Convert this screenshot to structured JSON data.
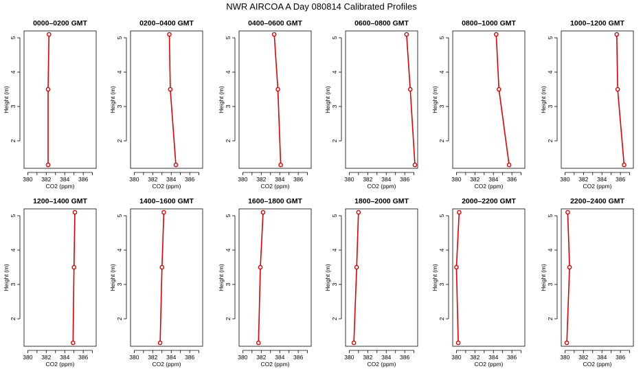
{
  "page": {
    "title": "NWR AIRCOA A  Day 080814  Calibrated Profiles"
  },
  "chart_data": {
    "type": "line",
    "xlabel": "CO2 (ppm)",
    "ylabel": "Height (m)",
    "xlim": [
      379.6,
      387.4
    ],
    "ylim": [
      1.2,
      5.2
    ],
    "x_ticks": [
      380,
      382,
      384,
      386
    ],
    "y_ticks": [
      2,
      3,
      4,
      5
    ],
    "grid": false,
    "line_color": "#dd0000",
    "heights": [
      1.3,
      3.5,
      5.1
    ],
    "panels": [
      {
        "title": "0000–0200 GMT",
        "co2": [
          382.2,
          382.2,
          382.3
        ]
      },
      {
        "title": "0200–0400 GMT",
        "co2": [
          384.5,
          383.9,
          383.8
        ]
      },
      {
        "title": "0400–0600 GMT",
        "co2": [
          384.1,
          383.8,
          383.4
        ]
      },
      {
        "title": "0600–0800 GMT",
        "co2": [
          387.1,
          386.6,
          386.2
        ]
      },
      {
        "title": "0800–1000 GMT",
        "co2": [
          385.7,
          384.6,
          384.3
        ]
      },
      {
        "title": "1000–1200 GMT",
        "co2": [
          386.4,
          385.7,
          385.6
        ]
      },
      {
        "title": "1200–1400 GMT",
        "co2": [
          384.9,
          385.0,
          385.1
        ]
      },
      {
        "title": "1400–1600 GMT",
        "co2": [
          382.8,
          383.0,
          383.2
        ]
      },
      {
        "title": "1600–1800 GMT",
        "co2": [
          381.7,
          381.9,
          382.2
        ]
      },
      {
        "title": "1800–2000 GMT",
        "co2": [
          380.5,
          380.8,
          381.0
        ]
      },
      {
        "title": "2000–2200 GMT",
        "co2": [
          380.2,
          380.0,
          380.3
        ]
      },
      {
        "title": "2200–2400 GMT",
        "co2": [
          380.2,
          380.5,
          380.3
        ]
      }
    ]
  }
}
